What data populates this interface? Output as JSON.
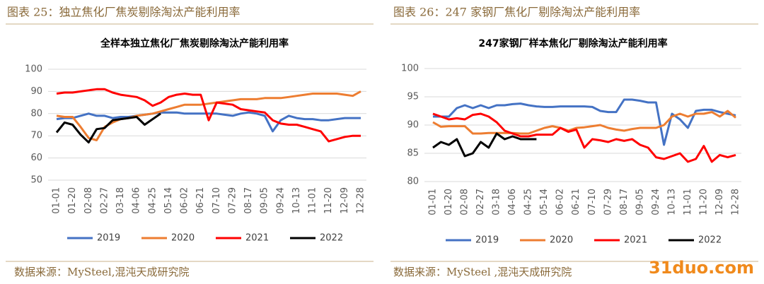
{
  "figures": [
    {
      "caption": "图表 25：独立焦化厂焦炭剔除淘汰产能利用率",
      "source": "数据来源：MySteel,混沌天成研究院"
    },
    {
      "caption": "图表 26：247 家钢厂焦化厂剔除淘汰产能利用率",
      "source": "数据来源：MySteel ,混沌天成研究院"
    }
  ],
  "watermark": "31duo.com",
  "chart_data": [
    {
      "type": "line",
      "title": "全样本独立焦化厂焦炭剔除淘汰产能利用率",
      "categories": [
        "01-01",
        null,
        "01-20",
        null,
        "02-08",
        null,
        "02-27",
        null,
        "03-18",
        null,
        "04-06",
        null,
        "04-25",
        null,
        "05-14",
        null,
        "06-02",
        null,
        "06-21",
        null,
        "07-10",
        null,
        "07-29",
        null,
        "08-17",
        null,
        "09-05",
        null,
        "09-24",
        null,
        "10-13",
        null,
        "11-01",
        null,
        "11-20",
        null,
        "12-09",
        null,
        "12-28"
      ],
      "ylim": [
        50,
        100
      ],
      "yticks": [
        50,
        60,
        70,
        80,
        90,
        100
      ],
      "grid": true,
      "legend": "bottom",
      "series": [
        {
          "name": "2019",
          "color": "#4472c4",
          "values": [
            77.5,
            78,
            78,
            79,
            80,
            79,
            79,
            78,
            78.5,
            78.5,
            79,
            79.5,
            80,
            80.5,
            80.5,
            80.5,
            80,
            80,
            80,
            80,
            80,
            79.5,
            79,
            80,
            80.5,
            80,
            79,
            72,
            77,
            79,
            78,
            77.5,
            77.5,
            77,
            77,
            77.5,
            78,
            78,
            78
          ]
        },
        {
          "name": "2020",
          "color": "#ed7d31",
          "values": [
            79,
            78.5,
            78.5,
            74,
            69,
            68,
            74,
            76,
            77.5,
            78,
            79,
            79.5,
            80,
            81,
            82,
            83,
            84,
            84,
            84,
            84.5,
            85,
            85.5,
            86,
            86.5,
            86.5,
            86.5,
            87,
            87,
            87,
            87.5,
            88,
            88.5,
            89,
            89,
            89,
            89,
            88.5,
            88,
            90
          ]
        },
        {
          "name": "2021",
          "color": "#ff0000",
          "values": [
            89,
            89.5,
            89.5,
            90,
            90.5,
            91,
            91,
            89.5,
            88.5,
            88,
            87.5,
            86,
            83.5,
            85,
            87.5,
            88.5,
            89,
            88.5,
            88.5,
            77,
            85,
            84.5,
            84,
            82,
            81.5,
            81,
            80.5,
            77,
            75.5,
            75,
            75,
            74,
            73,
            72,
            67.5,
            68.5,
            69.5,
            70,
            70
          ]
        },
        {
          "name": "2022",
          "color": "#000000",
          "values": [
            71.5,
            76,
            75,
            70.5,
            67,
            73,
            73.5,
            77,
            77.5,
            78,
            78.5,
            75,
            77.5,
            80,
            null,
            null,
            null,
            null,
            null,
            null,
            null,
            null,
            null,
            null,
            null,
            null,
            null,
            null,
            null,
            null,
            null,
            null,
            null,
            null,
            null,
            null,
            null,
            null,
            null
          ]
        }
      ]
    },
    {
      "type": "line",
      "title": "247家钢厂样本焦化厂剔除淘汰产能利用率",
      "categories": [
        "01-01",
        null,
        "01-20",
        null,
        "02-08",
        null,
        "02-27",
        null,
        "03-18",
        null,
        "04-06",
        null,
        "04-25",
        null,
        "05-14",
        null,
        "06-02",
        null,
        "06-21",
        null,
        "07-10",
        null,
        "07-29",
        null,
        "08-17",
        null,
        "09-05",
        null,
        "09-24",
        null,
        "10-13",
        null,
        "11-01",
        null,
        "11-20",
        null,
        "12-09",
        null,
        "12-28"
      ],
      "ylim": [
        80,
        100
      ],
      "yticks": [
        80,
        85,
        90,
        95,
        100
      ],
      "grid": true,
      "legend": "bottom",
      "series": [
        {
          "name": "2019",
          "color": "#4472c4",
          "values": [
            91.5,
            91.5,
            91.5,
            93,
            93.5,
            93,
            93.5,
            93,
            93.5,
            93.5,
            93.7,
            93.8,
            93.5,
            93.3,
            93.2,
            93.2,
            93.3,
            93.3,
            93.3,
            93.3,
            93.2,
            92.5,
            92.3,
            92.3,
            94.5,
            94.5,
            94.3,
            94,
            94,
            86.5,
            92,
            91,
            89.5,
            92.5,
            92.7,
            92.7,
            92.3,
            92,
            91.7
          ]
        },
        {
          "name": "2020",
          "color": "#ed7d31",
          "values": [
            90.5,
            89.7,
            89.8,
            89.8,
            89.8,
            88.5,
            88.5,
            88.6,
            88.6,
            88.6,
            88.6,
            88.5,
            88.5,
            89,
            89.5,
            89.8,
            89.5,
            89,
            89.5,
            89.6,
            89.8,
            90,
            89.5,
            89.2,
            89,
            89.3,
            89.5,
            89.5,
            89.5,
            90,
            91.5,
            92,
            91.5,
            92,
            92,
            92.3,
            91.5,
            92.5,
            91.3
          ]
        },
        {
          "name": "2021",
          "color": "#ff0000",
          "values": [
            92,
            91.5,
            91,
            91.2,
            91,
            91.8,
            92,
            91.5,
            90.5,
            89,
            88.5,
            88,
            88,
            88.3,
            88.3,
            88.3,
            89.5,
            88.8,
            89.2,
            86,
            87.5,
            87.3,
            87,
            87.5,
            87.2,
            87.5,
            86.5,
            86,
            84.3,
            84,
            84.5,
            85,
            83.5,
            84,
            86.3,
            83.5,
            84.7,
            84.3,
            84.7
          ]
        },
        {
          "name": "2022",
          "color": "#000000",
          "values": [
            86,
            87,
            86.5,
            87.5,
            84.5,
            85,
            87,
            86,
            88.5,
            87.5,
            88,
            87.5,
            87.5,
            87.5,
            null,
            null,
            null,
            null,
            null,
            null,
            null,
            null,
            null,
            null,
            null,
            null,
            null,
            null,
            null,
            null,
            null,
            null,
            null,
            null,
            null,
            null,
            null,
            null,
            null
          ]
        }
      ]
    }
  ]
}
